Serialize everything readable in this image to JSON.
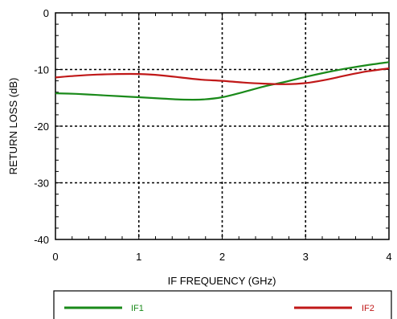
{
  "chart_data": {
    "type": "line",
    "title": "",
    "xlabel": "IF FREQUENCY (GHz)",
    "ylabel": "RETURN LOSS (dB)",
    "xlim": [
      0,
      4
    ],
    "ylim": [
      -40,
      0
    ],
    "x_ticks": [
      0,
      1,
      2,
      3,
      4
    ],
    "x_tick_labels": [
      "0",
      "1",
      "2",
      "3",
      "4"
    ],
    "y_ticks": [
      0,
      -10,
      -20,
      -30,
      -40
    ],
    "y_tick_labels": [
      "0",
      "-10",
      "-20",
      "-30",
      "-40"
    ],
    "grid": "dashed",
    "legend_position": "bottom",
    "series": [
      {
        "name": "IF1",
        "color": "#1a8a1a",
        "x": [
          0,
          0.25,
          0.5,
          0.75,
          1.0,
          1.25,
          1.5,
          1.75,
          2.0,
          2.25,
          2.5,
          2.75,
          3.0,
          3.25,
          3.5,
          3.75,
          4.0
        ],
        "y": [
          -14.2,
          -14.3,
          -14.5,
          -14.7,
          -14.9,
          -15.1,
          -15.3,
          -15.3,
          -14.9,
          -14.0,
          -13.0,
          -12.2,
          -11.3,
          -10.5,
          -9.8,
          -9.2,
          -8.7
        ]
      },
      {
        "name": "IF2",
        "color": "#c01818",
        "x": [
          0,
          0.25,
          0.5,
          0.75,
          1.0,
          1.25,
          1.5,
          1.75,
          2.0,
          2.25,
          2.5,
          2.75,
          3.0,
          3.25,
          3.5,
          3.75,
          4.0
        ],
        "y": [
          -11.4,
          -11.1,
          -10.9,
          -10.8,
          -10.8,
          -11.0,
          -11.4,
          -11.8,
          -12.0,
          -12.3,
          -12.5,
          -12.6,
          -12.4,
          -11.8,
          -11.0,
          -10.3,
          -9.8
        ]
      }
    ]
  }
}
